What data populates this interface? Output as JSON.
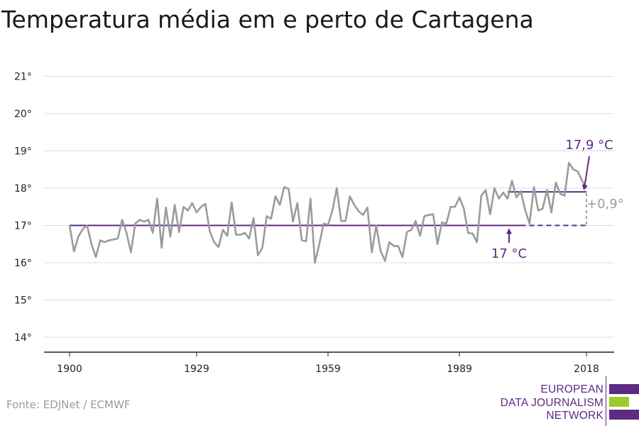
{
  "source": "Fonte: EDJNet / ECMWF",
  "logo": {
    "line1": "EUROPEAN",
    "line2": "DATA JOURNALISM",
    "line3": "NETWORK",
    "colors": [
      "#5e2a84",
      "#9bcc2d",
      "#5e2a84"
    ]
  },
  "colors": {
    "series": "#9b9b9b",
    "average": "#5e2a84",
    "diff": "#9b9b9b",
    "grid": "#dcdcdc",
    "axis": "#222222"
  },
  "chart_data": {
    "type": "line",
    "title": "Temperatura média em e perto de Cartagena",
    "xlabel": "",
    "ylabel": "",
    "xlim": [
      1900,
      2018
    ],
    "ylim": [
      13.6,
      21.4
    ],
    "grid": true,
    "x_ticks": [
      1900,
      1929,
      1959,
      1989,
      2018
    ],
    "y_ticks": [
      {
        "value": 14,
        "label": "14°"
      },
      {
        "value": 15,
        "label": "15°"
      },
      {
        "value": 16,
        "label": "16°"
      },
      {
        "value": 17,
        "label": "17°"
      },
      {
        "value": 18,
        "label": "18°"
      },
      {
        "value": 19,
        "label": "19°"
      },
      {
        "value": 20,
        "label": "20°"
      },
      {
        "value": 21,
        "label": "21°"
      }
    ],
    "series": [
      {
        "x": [
          1900,
          1901,
          1902,
          1903,
          1904,
          1905,
          1906,
          1907,
          1908,
          1909,
          1910,
          1911,
          1912,
          1913,
          1914,
          1915,
          1916,
          1917,
          1918,
          1919,
          1920,
          1921,
          1922,
          1923,
          1924,
          1925,
          1926,
          1927,
          1928,
          1929,
          1930,
          1931,
          1932,
          1933,
          1934,
          1935,
          1936,
          1937,
          1938,
          1939,
          1940,
          1941,
          1942,
          1943,
          1944,
          1945,
          1946,
          1947,
          1948,
          1949,
          1950,
          1951,
          1952,
          1953,
          1954,
          1955,
          1956,
          1957,
          1958,
          1959,
          1960,
          1961,
          1962,
          1963,
          1964,
          1965,
          1966,
          1967,
          1968,
          1969,
          1970,
          1971,
          1972,
          1973,
          1974,
          1975,
          1976,
          1977,
          1978,
          1979,
          1980,
          1981,
          1982,
          1983,
          1984,
          1985,
          1986,
          1987,
          1988,
          1989,
          1990,
          1991,
          1992,
          1993,
          1994,
          1995,
          1996,
          1997,
          1998,
          1999,
          2000,
          2001,
          2002,
          2003,
          2004,
          2005,
          2006,
          2007,
          2008,
          2009,
          2010,
          2011,
          2012,
          2013,
          2014,
          2015,
          2016,
          2017,
          2018
        ],
        "values": [
          17.0,
          16.3,
          16.7,
          16.9,
          17.0,
          16.5,
          16.15,
          16.6,
          16.55,
          16.6,
          16.62,
          16.65,
          17.15,
          16.8,
          16.28,
          17.05,
          17.15,
          17.1,
          17.15,
          16.8,
          17.72,
          16.4,
          17.48,
          16.7,
          17.55,
          16.82,
          17.5,
          17.4,
          17.6,
          17.35,
          17.5,
          17.58,
          16.85,
          16.55,
          16.42,
          16.88,
          16.72,
          17.62,
          16.75,
          16.75,
          16.8,
          16.65,
          17.2,
          16.2,
          16.4,
          17.25,
          17.18,
          17.78,
          17.55,
          18.03,
          17.98,
          17.1,
          17.6,
          16.6,
          16.58,
          17.72,
          16.0,
          16.5,
          17.05,
          17.02,
          17.4,
          18.0,
          17.12,
          17.12,
          17.78,
          17.55,
          17.38,
          17.28,
          17.48,
          16.28,
          17.0,
          16.32,
          16.05,
          16.55,
          16.45,
          16.45,
          16.15,
          16.82,
          16.88,
          17.12,
          16.72,
          17.25,
          17.28,
          17.3,
          16.5,
          17.08,
          17.05,
          17.5,
          17.5,
          17.75,
          17.45,
          16.8,
          16.78,
          16.55,
          17.8,
          17.95,
          17.3,
          18.0,
          17.72,
          17.88,
          17.72,
          18.2,
          17.75,
          17.92,
          17.42,
          17.05,
          18.03,
          17.4,
          17.45,
          17.95,
          17.35,
          18.15,
          17.85,
          17.8,
          18.68,
          18.5,
          18.45,
          18.2,
          18.0
        ]
      }
    ],
    "reference": {
      "baseline_value": 17.0,
      "baseline_label": "17 °C",
      "recent_value": 17.9,
      "recent_label": "17,9 °C",
      "recent_start": 2000,
      "diff_label": "+0,9°"
    }
  }
}
